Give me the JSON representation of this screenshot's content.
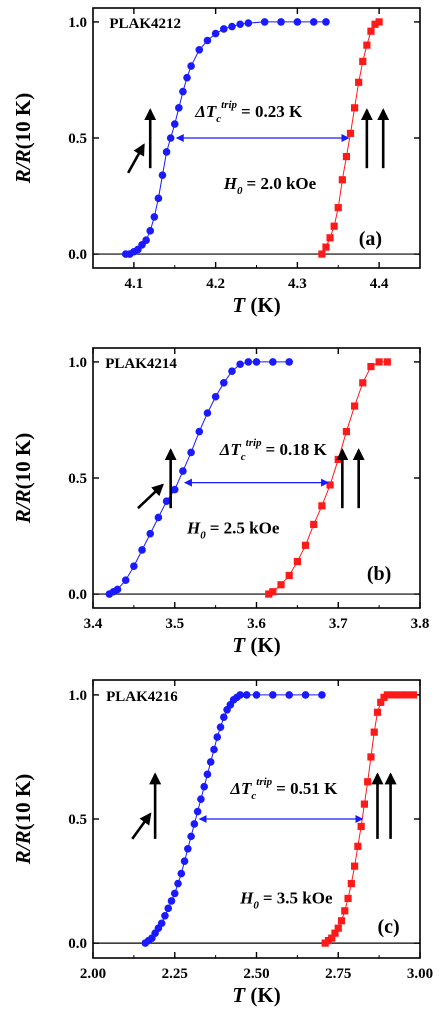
{
  "chart_data": [
    {
      "type": "scatter",
      "panel_label": "(a)",
      "sample": "PLAK4212",
      "xlabel": "T (K)",
      "ylabel": "R/R(10 K)",
      "xlim": [
        4.05,
        4.45
      ],
      "ylim": [
        -0.06,
        1.06
      ],
      "xticks": [
        4.1,
        4.2,
        4.3,
        4.4
      ],
      "xtick_labels": [
        "4.1",
        "4.2",
        "4.3",
        "4.4"
      ],
      "yticks": [
        0.0,
        0.5,
        1.0
      ],
      "ytick_labels": [
        "0.0",
        "0.5",
        "1.0"
      ],
      "delta_label": "ΔT",
      "delta_sub": "c",
      "delta_sup": "trip",
      "delta_value": "= 0.23 K",
      "field_label": "H",
      "field_sub": "0",
      "field_value": "= 2.0 kOe",
      "delta_arrow": {
        "x1": 4.15,
        "x2": 4.365,
        "y": 0.5
      },
      "series": [
        {
          "color": "#1a1aff",
          "marker": "circle",
          "x": [
            4.09,
            4.095,
            4.1,
            4.105,
            4.11,
            4.115,
            4.12,
            4.125,
            4.13,
            4.135,
            4.14,
            4.145,
            4.15,
            4.155,
            4.16,
            4.165,
            4.17,
            4.18,
            4.19,
            4.2,
            4.21,
            4.22,
            4.23,
            4.24,
            4.26,
            4.28,
            4.3,
            4.32,
            4.335
          ],
          "y": [
            0.0,
            0.0,
            0.01,
            0.02,
            0.04,
            0.06,
            0.1,
            0.16,
            0.24,
            0.34,
            0.44,
            0.5,
            0.56,
            0.63,
            0.7,
            0.76,
            0.81,
            0.88,
            0.92,
            0.95,
            0.97,
            0.98,
            0.99,
            0.995,
            1.0,
            1.0,
            1.0,
            1.0,
            1.0
          ]
        },
        {
          "color": "#ff1a1a",
          "marker": "square",
          "x": [
            4.33,
            4.335,
            4.34,
            4.345,
            4.35,
            4.355,
            4.36,
            4.365,
            4.37,
            4.375,
            4.38,
            4.385,
            4.39,
            4.395,
            4.4
          ],
          "y": [
            0.0,
            0.03,
            0.07,
            0.12,
            0.2,
            0.32,
            0.42,
            0.52,
            0.63,
            0.74,
            0.83,
            0.9,
            0.96,
            0.99,
            1.0
          ]
        }
      ]
    },
    {
      "type": "scatter",
      "panel_label": "(b)",
      "sample": "PLAK4214",
      "xlabel": "T (K)",
      "ylabel": "R/R(10 K)",
      "xlim": [
        3.4,
        3.8
      ],
      "ylim": [
        -0.06,
        1.06
      ],
      "xticks": [
        3.4,
        3.5,
        3.6,
        3.7,
        3.8
      ],
      "xtick_labels": [
        "3.4",
        "3.5",
        "3.6",
        "3.7",
        "3.8"
      ],
      "yticks": [
        0.0,
        0.5,
        1.0
      ],
      "ytick_labels": [
        "0.0",
        "0.5",
        "1.0"
      ],
      "delta_label": "ΔT",
      "delta_sub": "c",
      "delta_sup": "trip",
      "delta_value": "= 0.18 K",
      "field_label": "H",
      "field_sub": "0",
      "field_value": "= 2.5 kOe",
      "delta_arrow": {
        "x1": 3.51,
        "x2": 3.69,
        "y": 0.48
      },
      "series": [
        {
          "color": "#1a1aff",
          "marker": "circle",
          "x": [
            3.42,
            3.425,
            3.43,
            3.44,
            3.45,
            3.46,
            3.47,
            3.48,
            3.49,
            3.5,
            3.51,
            3.52,
            3.53,
            3.54,
            3.55,
            3.56,
            3.57,
            3.58,
            3.59,
            3.6,
            3.62,
            3.64
          ],
          "y": [
            0.0,
            0.01,
            0.02,
            0.06,
            0.12,
            0.19,
            0.26,
            0.33,
            0.4,
            0.45,
            0.53,
            0.61,
            0.7,
            0.78,
            0.85,
            0.91,
            0.96,
            0.99,
            1.0,
            1.0,
            1.0,
            1.0
          ]
        },
        {
          "color": "#ff1a1a",
          "marker": "square",
          "x": [
            3.615,
            3.62,
            3.63,
            3.64,
            3.65,
            3.66,
            3.67,
            3.68,
            3.69,
            3.7,
            3.71,
            3.72,
            3.73,
            3.74,
            3.75,
            3.76
          ],
          "y": [
            0.0,
            0.01,
            0.04,
            0.08,
            0.14,
            0.21,
            0.3,
            0.38,
            0.47,
            0.58,
            0.7,
            0.81,
            0.91,
            0.98,
            1.0,
            1.0
          ]
        }
      ]
    },
    {
      "type": "scatter",
      "panel_label": "(c)",
      "sample": "PLAK4216",
      "xlabel": "T (K)",
      "ylabel": "R/R(10 K)",
      "xlim": [
        2.0,
        3.0
      ],
      "ylim": [
        -0.06,
        1.06
      ],
      "xticks": [
        2.0,
        2.25,
        2.5,
        2.75,
        3.0
      ],
      "xtick_labels": [
        "2.00",
        "2.25",
        "2.50",
        "2.75",
        "3.00"
      ],
      "yticks": [
        0.0,
        0.5,
        1.0
      ],
      "ytick_labels": [
        "0.0",
        "0.5",
        "1.0"
      ],
      "delta_label": "ΔT",
      "delta_sub": "c",
      "delta_sup": "trip",
      "delta_value": "= 0.51 K",
      "field_label": "H",
      "field_sub": "0",
      "field_value": "= 3.5 kOe",
      "delta_arrow": {
        "x1": 2.32,
        "x2": 2.83,
        "y": 0.5
      },
      "series": [
        {
          "color": "#1a1aff",
          "marker": "circle",
          "x": [
            2.16,
            2.17,
            2.18,
            2.19,
            2.2,
            2.21,
            2.22,
            2.23,
            2.24,
            2.25,
            2.26,
            2.27,
            2.28,
            2.29,
            2.3,
            2.31,
            2.32,
            2.33,
            2.34,
            2.35,
            2.36,
            2.37,
            2.38,
            2.39,
            2.4,
            2.41,
            2.42,
            2.43,
            2.44,
            2.45,
            2.47,
            2.5,
            2.55,
            2.6,
            2.65,
            2.7
          ],
          "y": [
            0.0,
            0.01,
            0.02,
            0.04,
            0.06,
            0.08,
            0.11,
            0.14,
            0.17,
            0.2,
            0.24,
            0.28,
            0.33,
            0.38,
            0.43,
            0.48,
            0.53,
            0.58,
            0.63,
            0.68,
            0.73,
            0.78,
            0.83,
            0.87,
            0.91,
            0.94,
            0.96,
            0.98,
            0.99,
            1.0,
            1.0,
            1.0,
            1.0,
            1.0,
            1.0,
            1.0
          ]
        },
        {
          "color": "#ff1a1a",
          "marker": "square",
          "x": [
            2.71,
            2.72,
            2.73,
            2.74,
            2.75,
            2.76,
            2.77,
            2.78,
            2.79,
            2.8,
            2.81,
            2.82,
            2.83,
            2.84,
            2.85,
            2.86,
            2.87,
            2.88,
            2.89,
            2.9,
            2.92,
            2.94,
            2.96,
            2.98
          ],
          "y": [
            0.0,
            0.01,
            0.02,
            0.04,
            0.06,
            0.09,
            0.13,
            0.18,
            0.24,
            0.31,
            0.39,
            0.47,
            0.56,
            0.65,
            0.75,
            0.85,
            0.93,
            0.97,
            0.99,
            1.0,
            1.0,
            1.0,
            1.0,
            1.0
          ]
        }
      ]
    }
  ]
}
